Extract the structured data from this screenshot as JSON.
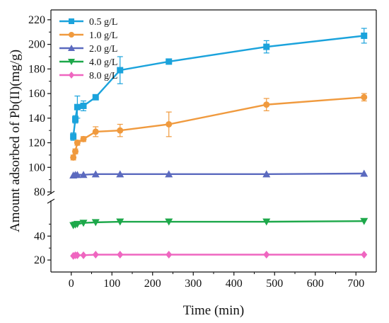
{
  "chart_data": {
    "type": "line",
    "title": "",
    "xlabel": "Time (min)",
    "ylabel": "Amount adsorbed of Pb(II)(mg/g)",
    "xlim": [
      -50,
      750
    ],
    "x_ticks": [
      0,
      100,
      200,
      300,
      400,
      500,
      600,
      700
    ],
    "axis_break": true,
    "y_lower": {
      "range": [
        10,
        68
      ],
      "ticks": [
        20,
        40
      ]
    },
    "y_upper": {
      "range": [
        80,
        228
      ],
      "ticks": [
        80,
        100,
        120,
        140,
        160,
        180,
        200,
        220
      ]
    },
    "legend_position": "top-left",
    "grid": false,
    "series": [
      {
        "name": "0.5 g/L",
        "color": "#1ba3dc",
        "marker": "square",
        "x": [
          5,
          10,
          15,
          30,
          60,
          120,
          240,
          480,
          720
        ],
        "y": [
          125,
          139,
          149,
          150,
          157,
          179,
          186,
          198,
          207
        ],
        "err": [
          3,
          3,
          9,
          4,
          2,
          11,
          2,
          5,
          6
        ]
      },
      {
        "name": "1.0 g/L",
        "color": "#f09a3e",
        "marker": "circle",
        "x": [
          5,
          10,
          15,
          30,
          60,
          120,
          240,
          480,
          720
        ],
        "y": [
          108,
          113,
          120,
          123,
          129,
          130,
          135,
          151,
          157
        ],
        "err": [
          2,
          2,
          2,
          2,
          4,
          5,
          10,
          5,
          3
        ]
      },
      {
        "name": "2.0 g/L",
        "color": "#5b6abf",
        "marker": "triangle-up",
        "x": [
          5,
          10,
          15,
          30,
          60,
          120,
          240,
          480,
          720
        ],
        "y": [
          93.5,
          94,
          94,
          94,
          94.5,
          94.5,
          94.5,
          94.5,
          95
        ],
        "err": [
          0,
          0,
          0,
          0,
          0,
          0,
          0,
          0,
          0
        ]
      },
      {
        "name": "4.0 g/L",
        "color": "#1da84a",
        "marker": "triangle-down",
        "x": [
          5,
          10,
          15,
          30,
          60,
          120,
          240,
          480,
          720
        ],
        "y": [
          49,
          49.5,
          50,
          51,
          51.5,
          52,
          52,
          52,
          52.5
        ],
        "err": [
          0,
          0,
          0,
          0,
          0,
          0,
          0,
          0,
          0
        ]
      },
      {
        "name": "8.0 g/L",
        "color": "#ef66c0",
        "marker": "diamond",
        "x": [
          5,
          10,
          15,
          30,
          60,
          120,
          240,
          480,
          720
        ],
        "y": [
          23.5,
          24,
          24,
          24,
          24.5,
          24.5,
          24.5,
          24.5,
          24.5
        ],
        "err": [
          0,
          0,
          0,
          0,
          0,
          0,
          0,
          0,
          0
        ]
      }
    ]
  }
}
